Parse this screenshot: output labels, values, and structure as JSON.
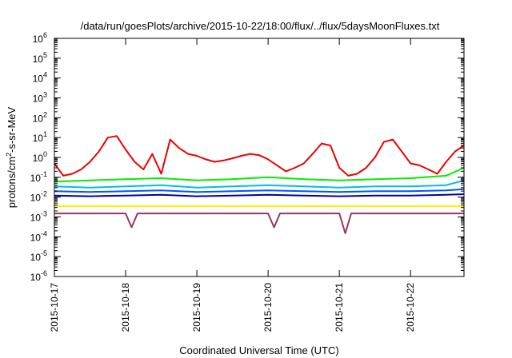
{
  "chart_data": {
    "type": "line",
    "title": "/data/run/goesPlots/archive/2015-10-22/18:00/flux/../flux/5daysMoonFluxes.txt",
    "xlabel": "Coordinated Universal Time (UTC)",
    "ylabel": {
      "base": "protons/cm",
      "sup": "2",
      "rest": "-s-sr-MeV"
    },
    "xlim": [
      "2015-10-17",
      "2015-10-22T18:00"
    ],
    "ylim": [
      1e-06,
      1000000.0
    ],
    "yscale": "log",
    "x_tick_labels": [
      "2015-10-17",
      "2015-10-18",
      "2015-10-19",
      "2015-10-20",
      "2015-10-21",
      "2015-10-22"
    ],
    "y_ticks": [
      {
        "value": 1e-06,
        "base": "10",
        "exp": "-6"
      },
      {
        "value": 1e-05,
        "base": "10",
        "exp": "-5"
      },
      {
        "value": 0.0001,
        "base": "10",
        "exp": "-4"
      },
      {
        "value": 0.001,
        "base": "10",
        "exp": "-3"
      },
      {
        "value": 0.01,
        "base": "10",
        "exp": "-2"
      },
      {
        "value": 0.1,
        "base": "10",
        "exp": "-1"
      },
      {
        "value": 1,
        "base": "10",
        "exp": "0"
      },
      {
        "value": 10,
        "base": "10",
        "exp": "1"
      },
      {
        "value": 100,
        "base": "10",
        "exp": "2"
      },
      {
        "value": 1000,
        "base": "10",
        "exp": "3"
      },
      {
        "value": 10000,
        "base": "10",
        "exp": "4"
      },
      {
        "value": 100000,
        "base": "10",
        "exp": "5"
      },
      {
        "value": 1000000,
        "base": "10",
        "exp": "6"
      }
    ],
    "grid": false,
    "legend": "none",
    "series": [
      {
        "color": "#ee0000",
        "x": [
          "2015-10-17T00:00",
          "2015-10-17T03:00",
          "2015-10-17T06:00",
          "2015-10-17T09:00",
          "2015-10-17T12:00",
          "2015-10-17T15:00",
          "2015-10-17T18:00",
          "2015-10-17T21:00",
          "2015-10-18T00:00",
          "2015-10-18T03:00",
          "2015-10-18T06:00",
          "2015-10-18T09:00",
          "2015-10-18T12:00",
          "2015-10-18T15:00",
          "2015-10-18T18:00",
          "2015-10-18T21:00",
          "2015-10-19T00:00",
          "2015-10-19T03:00",
          "2015-10-19T06:00",
          "2015-10-19T09:00",
          "2015-10-19T12:00",
          "2015-10-19T15:00",
          "2015-10-19T18:00",
          "2015-10-19T21:00",
          "2015-10-20T00:00",
          "2015-10-20T03:00",
          "2015-10-20T06:00",
          "2015-10-20T09:00",
          "2015-10-20T12:00",
          "2015-10-20T15:00",
          "2015-10-20T18:00",
          "2015-10-20T21:00",
          "2015-10-21T00:00",
          "2015-10-21T03:00",
          "2015-10-21T06:00",
          "2015-10-21T09:00",
          "2015-10-21T12:00",
          "2015-10-21T15:00",
          "2015-10-21T18:00",
          "2015-10-21T21:00",
          "2015-10-22T00:00",
          "2015-10-22T03:00",
          "2015-10-22T06:00",
          "2015-10-22T09:00",
          "2015-10-22T12:00",
          "2015-10-22T15:00",
          "2015-10-22T18:00"
        ],
        "values": [
          0.5,
          0.12,
          0.15,
          0.25,
          0.6,
          2,
          10,
          12,
          2.5,
          0.6,
          0.25,
          1.5,
          0.15,
          8,
          3,
          1.5,
          1.2,
          0.8,
          0.6,
          0.7,
          0.9,
          1.2,
          1.5,
          1.3,
          0.8,
          0.4,
          0.2,
          0.3,
          0.5,
          1.5,
          5,
          4,
          0.3,
          0.12,
          0.15,
          0.3,
          1,
          6,
          8,
          2,
          0.5,
          0.4,
          0.25,
          0.15,
          0.6,
          2,
          4
        ]
      },
      {
        "color": "#00ee00",
        "x": [
          "2015-10-17T00:00",
          "2015-10-17T12:00",
          "2015-10-18T00:00",
          "2015-10-18T12:00",
          "2015-10-19T00:00",
          "2015-10-19T12:00",
          "2015-10-20T00:00",
          "2015-10-20T12:00",
          "2015-10-21T00:00",
          "2015-10-21T12:00",
          "2015-10-22T00:00",
          "2015-10-22T12:00",
          "2015-10-22T18:00"
        ],
        "values": [
          0.06,
          0.07,
          0.08,
          0.09,
          0.07,
          0.08,
          0.1,
          0.08,
          0.07,
          0.08,
          0.09,
          0.12,
          0.3
        ]
      },
      {
        "color": "#00bbee",
        "x": [
          "2015-10-17T00:00",
          "2015-10-17T12:00",
          "2015-10-18T00:00",
          "2015-10-18T12:00",
          "2015-10-19T00:00",
          "2015-10-19T12:00",
          "2015-10-20T00:00",
          "2015-10-20T12:00",
          "2015-10-21T00:00",
          "2015-10-21T12:00",
          "2015-10-22T00:00",
          "2015-10-22T12:00",
          "2015-10-22T18:00"
        ],
        "values": [
          0.035,
          0.03,
          0.035,
          0.04,
          0.03,
          0.035,
          0.04,
          0.035,
          0.03,
          0.035,
          0.035,
          0.04,
          0.07
        ]
      },
      {
        "color": "#0055ff",
        "x": [
          "2015-10-17T00:00",
          "2015-10-17T12:00",
          "2015-10-18T00:00",
          "2015-10-18T12:00",
          "2015-10-19T00:00",
          "2015-10-19T12:00",
          "2015-10-20T00:00",
          "2015-10-20T12:00",
          "2015-10-21T00:00",
          "2015-10-21T12:00",
          "2015-10-22T00:00",
          "2015-10-22T12:00",
          "2015-10-22T18:00"
        ],
        "values": [
          0.02,
          0.018,
          0.02,
          0.022,
          0.018,
          0.02,
          0.022,
          0.02,
          0.018,
          0.02,
          0.02,
          0.022,
          0.025
        ]
      },
      {
        "color": "#0000aa",
        "x": [
          "2015-10-17T00:00",
          "2015-10-17T12:00",
          "2015-10-18T00:00",
          "2015-10-18T12:00",
          "2015-10-19T00:00",
          "2015-10-19T12:00",
          "2015-10-20T00:00",
          "2015-10-20T12:00",
          "2015-10-21T00:00",
          "2015-10-21T12:00",
          "2015-10-22T00:00",
          "2015-10-22T12:00",
          "2015-10-22T18:00"
        ],
        "values": [
          0.012,
          0.011,
          0.012,
          0.013,
          0.011,
          0.012,
          0.013,
          0.012,
          0.011,
          0.012,
          0.012,
          0.013,
          0.014
        ]
      },
      {
        "color": "#ffee00",
        "x": [
          "2015-10-17T00:00",
          "2015-10-17T12:00",
          "2015-10-18T00:00",
          "2015-10-18T12:00",
          "2015-10-19T00:00",
          "2015-10-19T12:00",
          "2015-10-20T00:00",
          "2015-10-20T12:00",
          "2015-10-21T00:00",
          "2015-10-21T12:00",
          "2015-10-22T00:00",
          "2015-10-22T12:00",
          "2015-10-22T18:00"
        ],
        "values": [
          0.0035,
          0.0035,
          0.0035,
          0.0035,
          0.0035,
          0.0035,
          0.0035,
          0.0035,
          0.0035,
          0.0035,
          0.0035,
          0.0035,
          0.0035
        ]
      },
      {
        "color": "#993366",
        "x": [
          "2015-10-17T00:00",
          "2015-10-17T12:00",
          "2015-10-18T00:00",
          "2015-10-18T02:00",
          "2015-10-18T04:00",
          "2015-10-18T12:00",
          "2015-10-19T00:00",
          "2015-10-19T12:00",
          "2015-10-20T00:00",
          "2015-10-20T02:00",
          "2015-10-20T04:00",
          "2015-10-20T12:00",
          "2015-10-21T00:00",
          "2015-10-21T02:00",
          "2015-10-21T04:00",
          "2015-10-21T12:00",
          "2015-10-22T00:00",
          "2015-10-22T12:00",
          "2015-10-22T18:00"
        ],
        "values": [
          0.0015,
          0.0015,
          0.0015,
          0.0003,
          0.0015,
          0.0015,
          0.0015,
          0.0015,
          0.0015,
          0.0003,
          0.0015,
          0.0015,
          0.0015,
          0.00015,
          0.0015,
          0.0015,
          0.0015,
          0.0015,
          0.0015
        ]
      }
    ]
  }
}
